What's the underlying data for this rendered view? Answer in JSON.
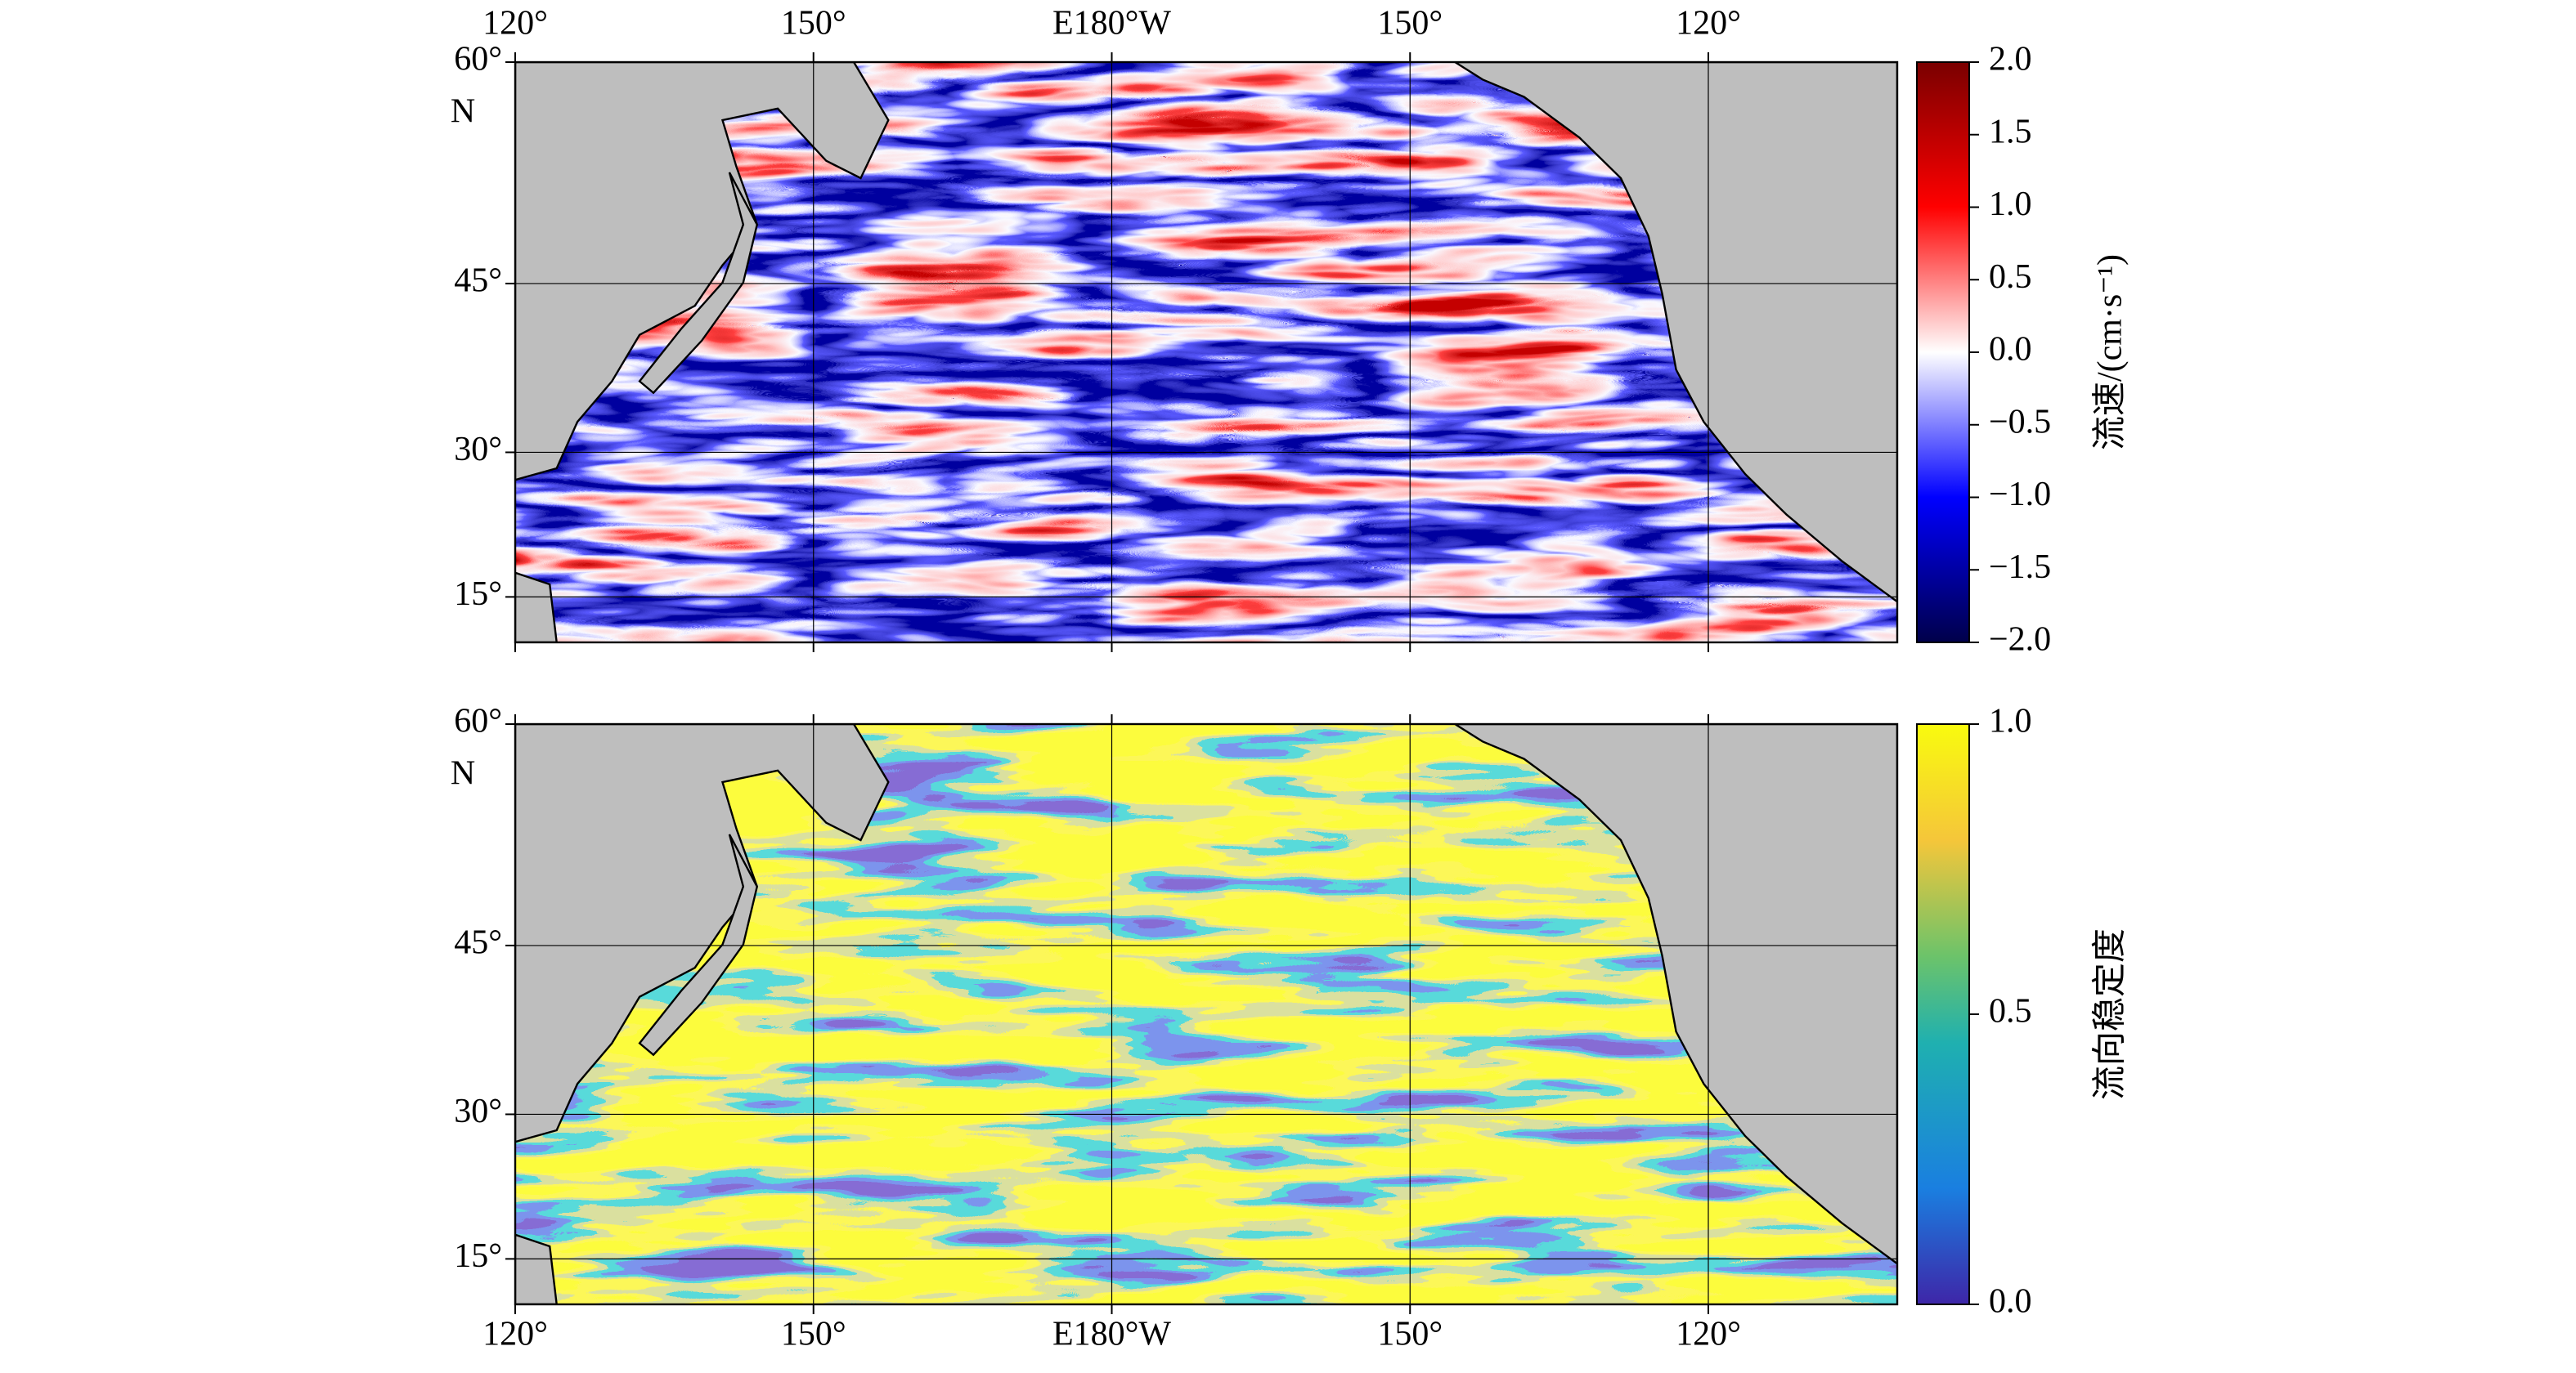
{
  "maps": [
    {
      "projection": "mercator",
      "xlim": [
        120,
        259
      ],
      "ylim": [
        10,
        60
      ],
      "xtick_side": "top",
      "lat_suffix": "N",
      "xticks": [
        {
          "value": 120,
          "label": "120°"
        },
        {
          "value": 150,
          "label": "150°"
        },
        {
          "value": 180,
          "label": "E180°W"
        },
        {
          "value": 210,
          "label": "150°"
        },
        {
          "value": 240,
          "label": "120°"
        }
      ],
      "yticks": [
        {
          "value": 60,
          "label": "60°"
        },
        {
          "value": 45,
          "label": "45°"
        },
        {
          "value": 30,
          "label": "30°"
        },
        {
          "value": 15,
          "label": "15°"
        }
      ],
      "colorbar": {
        "lim": [
          -2,
          2
        ],
        "label": "流速/(cm·s⁻¹)",
        "ticks": [
          {
            "value": 2,
            "label": "2.0"
          },
          {
            "value": 1.5,
            "label": "1.5"
          },
          {
            "value": 1,
            "label": "1.0"
          },
          {
            "value": 0.5,
            "label": "0.5"
          },
          {
            "value": 0,
            "label": "0.0"
          },
          {
            "value": -0.5,
            "label": "−0.5"
          },
          {
            "value": -1,
            "label": "−1.0"
          },
          {
            "value": -1.5,
            "label": "−1.5"
          },
          {
            "value": -2,
            "label": "−2.0"
          }
        ]
      }
    },
    {
      "projection": "mercator",
      "xlim": [
        120,
        259
      ],
      "ylim": [
        10,
        60
      ],
      "xtick_side": "bottom",
      "lat_suffix": "N",
      "xticks": [
        {
          "value": 120,
          "label": "120°"
        },
        {
          "value": 150,
          "label": "150°"
        },
        {
          "value": 180,
          "label": "E180°W"
        },
        {
          "value": 210,
          "label": "150°"
        },
        {
          "value": 240,
          "label": "120°"
        }
      ],
      "yticks": [
        {
          "value": 60,
          "label": "60°"
        },
        {
          "value": 45,
          "label": "45°"
        },
        {
          "value": 30,
          "label": "30°"
        },
        {
          "value": 15,
          "label": "15°"
        }
      ],
      "colorbar": {
        "lim": [
          0,
          1
        ],
        "label": "流向稳定度",
        "ticks": [
          {
            "value": 1,
            "label": "1.0"
          },
          {
            "value": 0.5,
            "label": "0.5"
          },
          {
            "value": 0,
            "label": "0.0"
          }
        ]
      }
    }
  ]
}
